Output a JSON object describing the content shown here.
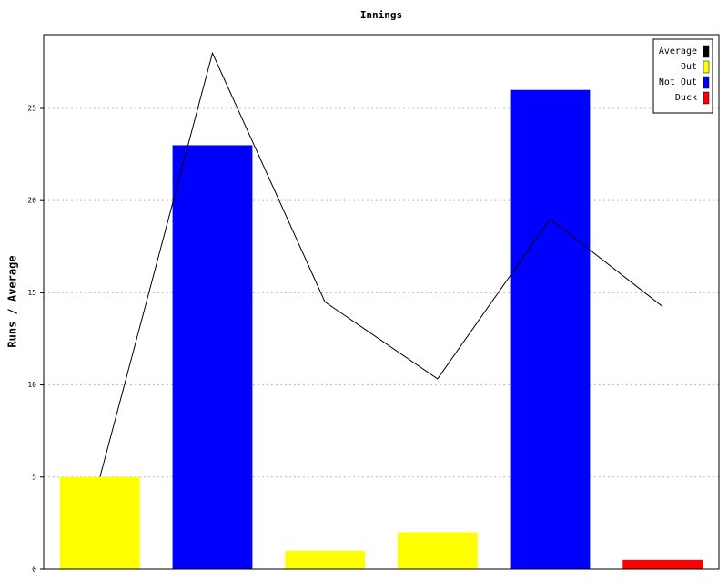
{
  "chart_data": {
    "type": "bar",
    "title": "Innings",
    "y_label": "Runs / Average",
    "ylim": [
      0,
      29
    ],
    "yticks": [
      0,
      5,
      10,
      15,
      20,
      25
    ],
    "grid": true,
    "legend": "upper right",
    "series": [
      {
        "name": "Average",
        "color": "#000000",
        "type": "line",
        "values": [
          5,
          28,
          14.5,
          10.33,
          19,
          14.25
        ]
      },
      {
        "name": "Out",
        "color": "#ffff00",
        "type": "bar",
        "values": [
          5,
          null,
          1,
          2,
          null,
          null
        ]
      },
      {
        "name": "Not Out",
        "color": "#0000ff",
        "type": "bar",
        "values": [
          null,
          23,
          null,
          null,
          26,
          null
        ]
      },
      {
        "name": "Duck",
        "color": "#ff0000",
        "type": "bar",
        "values": [
          null,
          null,
          null,
          null,
          null,
          0.5
        ]
      }
    ]
  }
}
